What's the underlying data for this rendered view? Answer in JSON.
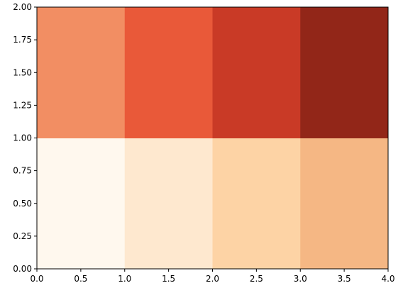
{
  "chart_data": {
    "type": "heatmap",
    "x_edges": [
      0,
      1,
      2,
      3,
      4
    ],
    "y_edges": [
      0,
      1,
      2
    ],
    "colormap": "Oranges",
    "grid": false,
    "xlim": [
      0,
      4
    ],
    "ylim": [
      0,
      2
    ],
    "x_ticks": [
      0.0,
      0.5,
      1.0,
      1.5,
      2.0,
      2.5,
      3.0,
      3.5,
      4.0
    ],
    "x_tick_labels": [
      "0.0",
      "0.5",
      "1.0",
      "1.5",
      "2.0",
      "2.5",
      "3.0",
      "3.5",
      "4.0"
    ],
    "y_ticks": [
      0.0,
      0.25,
      0.5,
      0.75,
      1.0,
      1.25,
      1.5,
      1.75,
      2.0
    ],
    "y_tick_labels": [
      "0.00",
      "0.25",
      "0.50",
      "0.75",
      "1.00",
      "1.25",
      "1.50",
      "1.75",
      "2.00"
    ],
    "cells": [
      {
        "row": 0,
        "col": 0,
        "color": "#fff8ee"
      },
      {
        "row": 0,
        "col": 1,
        "color": "#fee8cf"
      },
      {
        "row": 0,
        "col": 2,
        "color": "#fdd3a5"
      },
      {
        "row": 0,
        "col": 3,
        "color": "#f5b784"
      },
      {
        "row": 1,
        "col": 0,
        "color": "#f28e63"
      },
      {
        "row": 1,
        "col": 1,
        "color": "#e95939"
      },
      {
        "row": 1,
        "col": 2,
        "color": "#c93a26"
      },
      {
        "row": 1,
        "col": 3,
        "color": "#922618"
      }
    ]
  }
}
